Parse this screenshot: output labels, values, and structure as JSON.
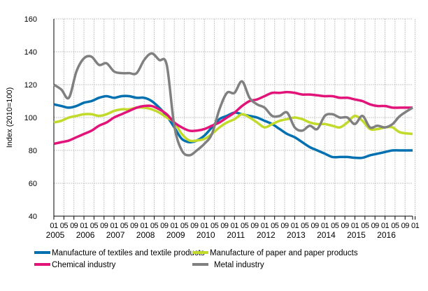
{
  "chart_data": {
    "type": "line",
    "title": "",
    "xlabel": "",
    "ylabel": "Index (2010=100)",
    "ylim": [
      40,
      160
    ],
    "yticks": [
      40,
      60,
      80,
      100,
      120,
      140,
      160
    ],
    "grid": true,
    "legend_position": "bottom",
    "x_month_labels": [
      "01",
      "05",
      "09"
    ],
    "x_years": [
      "2005",
      "2006",
      "2007",
      "2008",
      "2009",
      "2010",
      "2011",
      "2012",
      "2013",
      "2014",
      "2015",
      "2016"
    ],
    "x_range": [
      "2005-01",
      "2016-12"
    ],
    "x": [
      "2005-01",
      "2005-04",
      "2005-07",
      "2005-10",
      "2006-01",
      "2006-04",
      "2006-07",
      "2006-10",
      "2007-01",
      "2007-04",
      "2007-07",
      "2007-10",
      "2008-01",
      "2008-04",
      "2008-07",
      "2008-10",
      "2009-01",
      "2009-04",
      "2009-07",
      "2009-10",
      "2010-01",
      "2010-04",
      "2010-07",
      "2010-10",
      "2011-01",
      "2011-04",
      "2011-07",
      "2011-10",
      "2012-01",
      "2012-04",
      "2012-07",
      "2012-10",
      "2013-01",
      "2013-04",
      "2013-07",
      "2013-10",
      "2014-01",
      "2014-04",
      "2014-07",
      "2014-10",
      "2015-01",
      "2015-04",
      "2015-07",
      "2015-10",
      "2016-01",
      "2016-04",
      "2016-07",
      "2016-12"
    ],
    "series": [
      {
        "name": "Manufacture of textiles and textile products",
        "color": "#0070b0",
        "values": [
          108,
          107,
          106,
          107,
          109,
          110,
          112,
          113,
          112,
          113,
          113,
          112,
          112,
          110,
          106,
          101,
          94,
          87,
          85,
          86,
          89,
          94,
          99,
          101,
          103,
          102,
          101,
          100,
          98,
          96,
          93,
          90,
          88,
          85,
          82,
          80,
          78,
          76,
          76,
          76,
          75.5,
          75.5,
          77,
          78,
          79,
          80,
          80,
          80
        ]
      },
      {
        "name": "Manufacture of paper and paper products",
        "color": "#c2da2a",
        "values": [
          97,
          98,
          100,
          101,
          102,
          102,
          101,
          102,
          104,
          105,
          105,
          106,
          106,
          105,
          103,
          100,
          97,
          90,
          86,
          86,
          87,
          90,
          94,
          97,
          99,
          102,
          100,
          97,
          94,
          96,
          98,
          99,
          100,
          99,
          97,
          96,
          96,
          95,
          94,
          97,
          101,
          98,
          93,
          93,
          94,
          94,
          91,
          90
        ]
      },
      {
        "name": "Chemical industry",
        "color": "#e2147a",
        "values": [
          84,
          85,
          86,
          88,
          90,
          92,
          95,
          97,
          100,
          102,
          104,
          106,
          107,
          107,
          105,
          102,
          97,
          94,
          92,
          92,
          93,
          95,
          97,
          100,
          103,
          107,
          110,
          111,
          113,
          115,
          115,
          115.5,
          115,
          114,
          114,
          113.5,
          113,
          113,
          112,
          112,
          111,
          110,
          108,
          107,
          107,
          106,
          106,
          106
        ]
      },
      {
        "name": "Metal industry",
        "color": "#808080",
        "values": [
          120,
          117,
          112,
          128,
          136,
          137,
          132,
          133,
          128,
          127,
          127,
          127,
          135,
          139,
          135,
          132,
          95,
          80,
          77,
          80,
          84,
          90,
          105,
          115,
          115,
          122,
          112,
          108,
          106,
          101,
          101,
          103,
          94,
          92,
          95,
          93,
          101,
          102,
          100,
          100,
          96,
          101,
          94,
          95,
          94,
          96,
          101,
          106
        ]
      }
    ]
  }
}
